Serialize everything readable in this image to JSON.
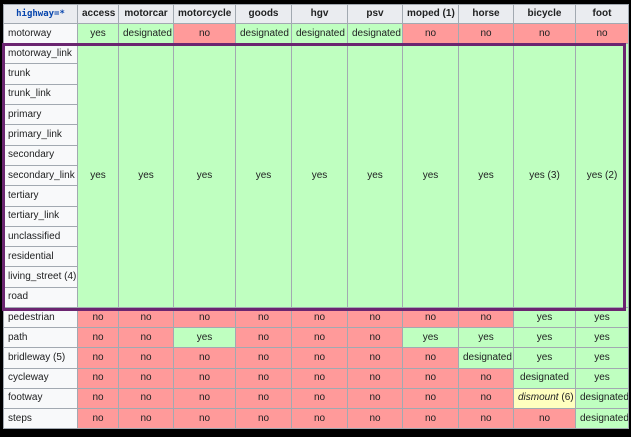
{
  "colors": {
    "yes": "#bfffc0",
    "no": "#ff9a9a",
    "warn": "#ffffbf",
    "header": "#eaecf0",
    "highlight_border": "#6b2570"
  },
  "header": {
    "corner": "highway=*",
    "columns": [
      "access",
      "motorcar",
      "motorcycle",
      "goods",
      "hgv",
      "psv",
      "moped (1)",
      "horse",
      "bicycle",
      "foot"
    ]
  },
  "motorway_row": {
    "label": "motorway",
    "cells": [
      "yes",
      "designated",
      "no",
      "designated",
      "designated",
      "designated",
      "no",
      "no",
      "no",
      "no"
    ]
  },
  "group": {
    "labels": [
      "motorway_link",
      "trunk",
      "trunk_link",
      "primary",
      "primary_link",
      "secondary",
      "secondary_link",
      "tertiary",
      "tertiary_link",
      "unclassified",
      "residential",
      "living_street (4)",
      "road"
    ],
    "cells": [
      "yes",
      "yes",
      "yes",
      "yes",
      "yes",
      "yes",
      "yes",
      "yes",
      "yes (3)",
      "yes (2)"
    ]
  },
  "rows": [
    {
      "label": "pedestrian",
      "cells": [
        "no",
        "no",
        "no",
        "no",
        "no",
        "no",
        "no",
        "no",
        "yes",
        "yes"
      ]
    },
    {
      "label": "path",
      "cells": [
        "no",
        "no",
        "yes",
        "no",
        "no",
        "no",
        "yes",
        "yes",
        "yes",
        "yes"
      ]
    },
    {
      "label": "bridleway (5)",
      "cells": [
        "no",
        "no",
        "no",
        "no",
        "no",
        "no",
        "no",
        "designated",
        "yes",
        "yes"
      ]
    },
    {
      "label": "cycleway",
      "cells": [
        "no",
        "no",
        "no",
        "no",
        "no",
        "no",
        "no",
        "no",
        "designated",
        "yes"
      ]
    },
    {
      "label": "footway",
      "cells": [
        "no",
        "no",
        "no",
        "no",
        "no",
        "no",
        "no",
        "no",
        "dismount",
        "designated"
      ]
    },
    {
      "label": "steps",
      "cells": [
        "no",
        "no",
        "no",
        "no",
        "no",
        "no",
        "no",
        "no",
        "no",
        "designated"
      ]
    }
  ],
  "footway_bicycle_note": "(6)"
}
